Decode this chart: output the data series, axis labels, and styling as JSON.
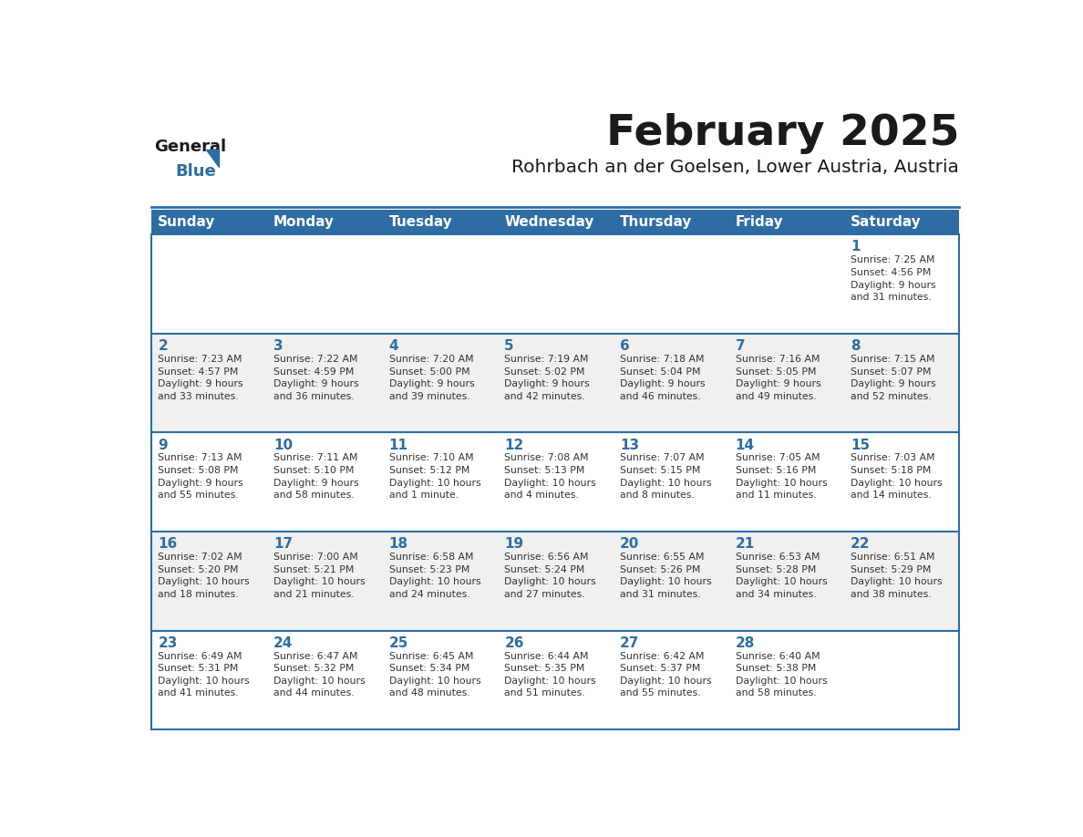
{
  "title": "February 2025",
  "subtitle": "Rohrbach an der Goelsen, Lower Austria, Austria",
  "days_of_week": [
    "Sunday",
    "Monday",
    "Tuesday",
    "Wednesday",
    "Thursday",
    "Friday",
    "Saturday"
  ],
  "header_bg": "#2E6DA4",
  "header_text": "#FFFFFF",
  "cell_bg_odd": "#F0F0F0",
  "cell_bg_even": "#FFFFFF",
  "day_num_color": "#2E6DA4",
  "info_text_color": "#333333",
  "grid_line_color": "#2E6DA4",
  "logo_general_color": "#1a1a1a",
  "logo_blue_color": "#2E6DA4",
  "calendar_data": [
    [
      {
        "day": null,
        "info": ""
      },
      {
        "day": null,
        "info": ""
      },
      {
        "day": null,
        "info": ""
      },
      {
        "day": null,
        "info": ""
      },
      {
        "day": null,
        "info": ""
      },
      {
        "day": null,
        "info": ""
      },
      {
        "day": 1,
        "info": "Sunrise: 7:25 AM\nSunset: 4:56 PM\nDaylight: 9 hours\nand 31 minutes."
      }
    ],
    [
      {
        "day": 2,
        "info": "Sunrise: 7:23 AM\nSunset: 4:57 PM\nDaylight: 9 hours\nand 33 minutes."
      },
      {
        "day": 3,
        "info": "Sunrise: 7:22 AM\nSunset: 4:59 PM\nDaylight: 9 hours\nand 36 minutes."
      },
      {
        "day": 4,
        "info": "Sunrise: 7:20 AM\nSunset: 5:00 PM\nDaylight: 9 hours\nand 39 minutes."
      },
      {
        "day": 5,
        "info": "Sunrise: 7:19 AM\nSunset: 5:02 PM\nDaylight: 9 hours\nand 42 minutes."
      },
      {
        "day": 6,
        "info": "Sunrise: 7:18 AM\nSunset: 5:04 PM\nDaylight: 9 hours\nand 46 minutes."
      },
      {
        "day": 7,
        "info": "Sunrise: 7:16 AM\nSunset: 5:05 PM\nDaylight: 9 hours\nand 49 minutes."
      },
      {
        "day": 8,
        "info": "Sunrise: 7:15 AM\nSunset: 5:07 PM\nDaylight: 9 hours\nand 52 minutes."
      }
    ],
    [
      {
        "day": 9,
        "info": "Sunrise: 7:13 AM\nSunset: 5:08 PM\nDaylight: 9 hours\nand 55 minutes."
      },
      {
        "day": 10,
        "info": "Sunrise: 7:11 AM\nSunset: 5:10 PM\nDaylight: 9 hours\nand 58 minutes."
      },
      {
        "day": 11,
        "info": "Sunrise: 7:10 AM\nSunset: 5:12 PM\nDaylight: 10 hours\nand 1 minute."
      },
      {
        "day": 12,
        "info": "Sunrise: 7:08 AM\nSunset: 5:13 PM\nDaylight: 10 hours\nand 4 minutes."
      },
      {
        "day": 13,
        "info": "Sunrise: 7:07 AM\nSunset: 5:15 PM\nDaylight: 10 hours\nand 8 minutes."
      },
      {
        "day": 14,
        "info": "Sunrise: 7:05 AM\nSunset: 5:16 PM\nDaylight: 10 hours\nand 11 minutes."
      },
      {
        "day": 15,
        "info": "Sunrise: 7:03 AM\nSunset: 5:18 PM\nDaylight: 10 hours\nand 14 minutes."
      }
    ],
    [
      {
        "day": 16,
        "info": "Sunrise: 7:02 AM\nSunset: 5:20 PM\nDaylight: 10 hours\nand 18 minutes."
      },
      {
        "day": 17,
        "info": "Sunrise: 7:00 AM\nSunset: 5:21 PM\nDaylight: 10 hours\nand 21 minutes."
      },
      {
        "day": 18,
        "info": "Sunrise: 6:58 AM\nSunset: 5:23 PM\nDaylight: 10 hours\nand 24 minutes."
      },
      {
        "day": 19,
        "info": "Sunrise: 6:56 AM\nSunset: 5:24 PM\nDaylight: 10 hours\nand 27 minutes."
      },
      {
        "day": 20,
        "info": "Sunrise: 6:55 AM\nSunset: 5:26 PM\nDaylight: 10 hours\nand 31 minutes."
      },
      {
        "day": 21,
        "info": "Sunrise: 6:53 AM\nSunset: 5:28 PM\nDaylight: 10 hours\nand 34 minutes."
      },
      {
        "day": 22,
        "info": "Sunrise: 6:51 AM\nSunset: 5:29 PM\nDaylight: 10 hours\nand 38 minutes."
      }
    ],
    [
      {
        "day": 23,
        "info": "Sunrise: 6:49 AM\nSunset: 5:31 PM\nDaylight: 10 hours\nand 41 minutes."
      },
      {
        "day": 24,
        "info": "Sunrise: 6:47 AM\nSunset: 5:32 PM\nDaylight: 10 hours\nand 44 minutes."
      },
      {
        "day": 25,
        "info": "Sunrise: 6:45 AM\nSunset: 5:34 PM\nDaylight: 10 hours\nand 48 minutes."
      },
      {
        "day": 26,
        "info": "Sunrise: 6:44 AM\nSunset: 5:35 PM\nDaylight: 10 hours\nand 51 minutes."
      },
      {
        "day": 27,
        "info": "Sunrise: 6:42 AM\nSunset: 5:37 PM\nDaylight: 10 hours\nand 55 minutes."
      },
      {
        "day": 28,
        "info": "Sunrise: 6:40 AM\nSunset: 5:38 PM\nDaylight: 10 hours\nand 58 minutes."
      },
      {
        "day": null,
        "info": ""
      }
    ]
  ]
}
